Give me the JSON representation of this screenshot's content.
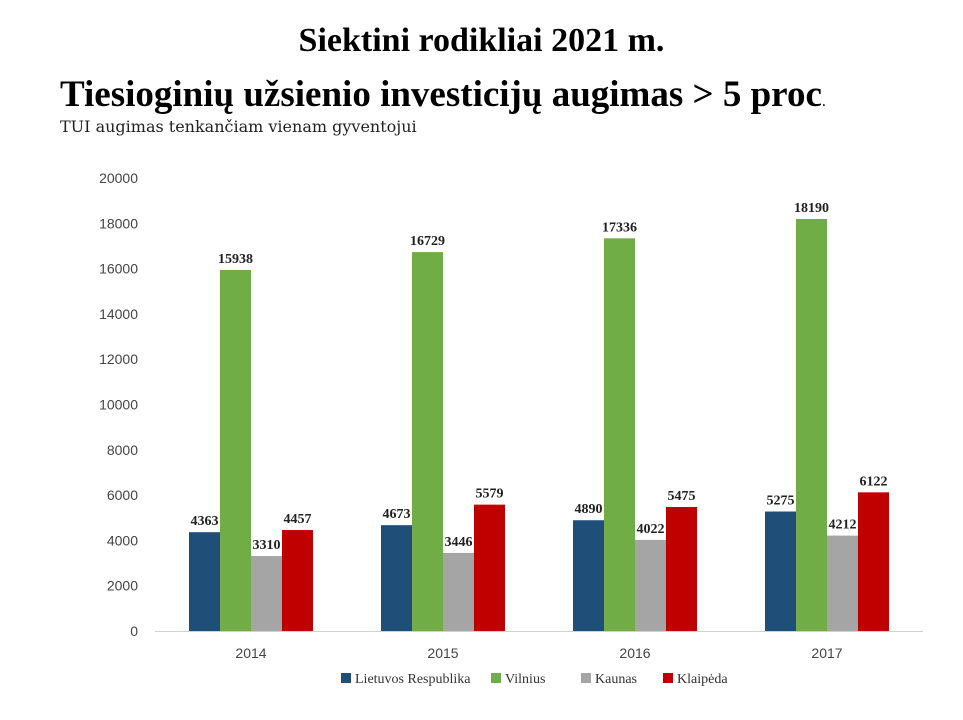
{
  "header": {
    "title": "Siektini rodikliai 2021 m.",
    "subtitle_main": "Tiesioginių užsienio investicijų augimas > 5 proc",
    "subtitle_dot": ".",
    "caption": "TUI augimas tenkančiam vienam gyventojui"
  },
  "chart_data": {
    "type": "bar",
    "categories": [
      "2014",
      "2015",
      "2016",
      "2017"
    ],
    "series": [
      {
        "name": "Lietuvos Respublika",
        "color": "#1F4E79",
        "values": [
          4363,
          4673,
          4890,
          5275
        ]
      },
      {
        "name": "Vilnius",
        "color": "#70AD47",
        "values": [
          15938,
          16729,
          17336,
          18190
        ]
      },
      {
        "name": "Kaunas",
        "color": "#A5A5A5",
        "values": [
          3310,
          3446,
          4022,
          4212
        ]
      },
      {
        "name": "Klaipėda",
        "color": "#C00000",
        "values": [
          4457,
          5579,
          5475,
          6122
        ]
      }
    ],
    "ylim": [
      0,
      20000
    ],
    "yticks": [
      "0",
      "2000",
      "4000",
      "6000",
      "8000",
      "10000",
      "12000",
      "14000",
      "16000",
      "18000",
      "20000"
    ],
    "grid": false,
    "legend": "bottom",
    "data_labels": true
  }
}
